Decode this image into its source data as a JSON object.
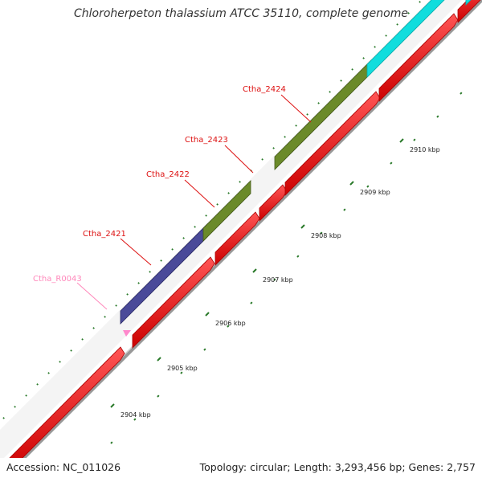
{
  "title": "Chloroherpeton thalassium ATCC 35110, complete genome",
  "footer": {
    "accession": "Accession: NC_011026",
    "topology": "Topology: circular; Length: 3,293,456 bp; Genes: 2,757"
  },
  "scale": {
    "ticks": [
      {
        "label": "2904 kbp"
      },
      {
        "label": "2905 kbp"
      },
      {
        "label": "2906 kbp"
      },
      {
        "label": "2907 kbp"
      },
      {
        "label": "2908 kbp"
      },
      {
        "label": "2909 kbp"
      },
      {
        "label": "2910 kbp"
      }
    ]
  },
  "gene_labels": [
    {
      "label": "Ctha_R0043",
      "color": "#ff88bb"
    },
    {
      "label": "Ctha_2421",
      "color": "#dd1111"
    },
    {
      "label": "Ctha_2422",
      "color": "#dd1111"
    },
    {
      "label": "Ctha_2423",
      "color": "#dd1111"
    },
    {
      "label": "Ctha_2424",
      "color": "#dd1111"
    }
  ],
  "colors": {
    "cds": "#ee1111",
    "category_blue": "#4a4a99",
    "category_green": "#6b8a2a",
    "category_cyan": "#11dddd",
    "rna": "#ff88cc",
    "backbone": "#999999",
    "ticks": "#2a7a2a"
  }
}
